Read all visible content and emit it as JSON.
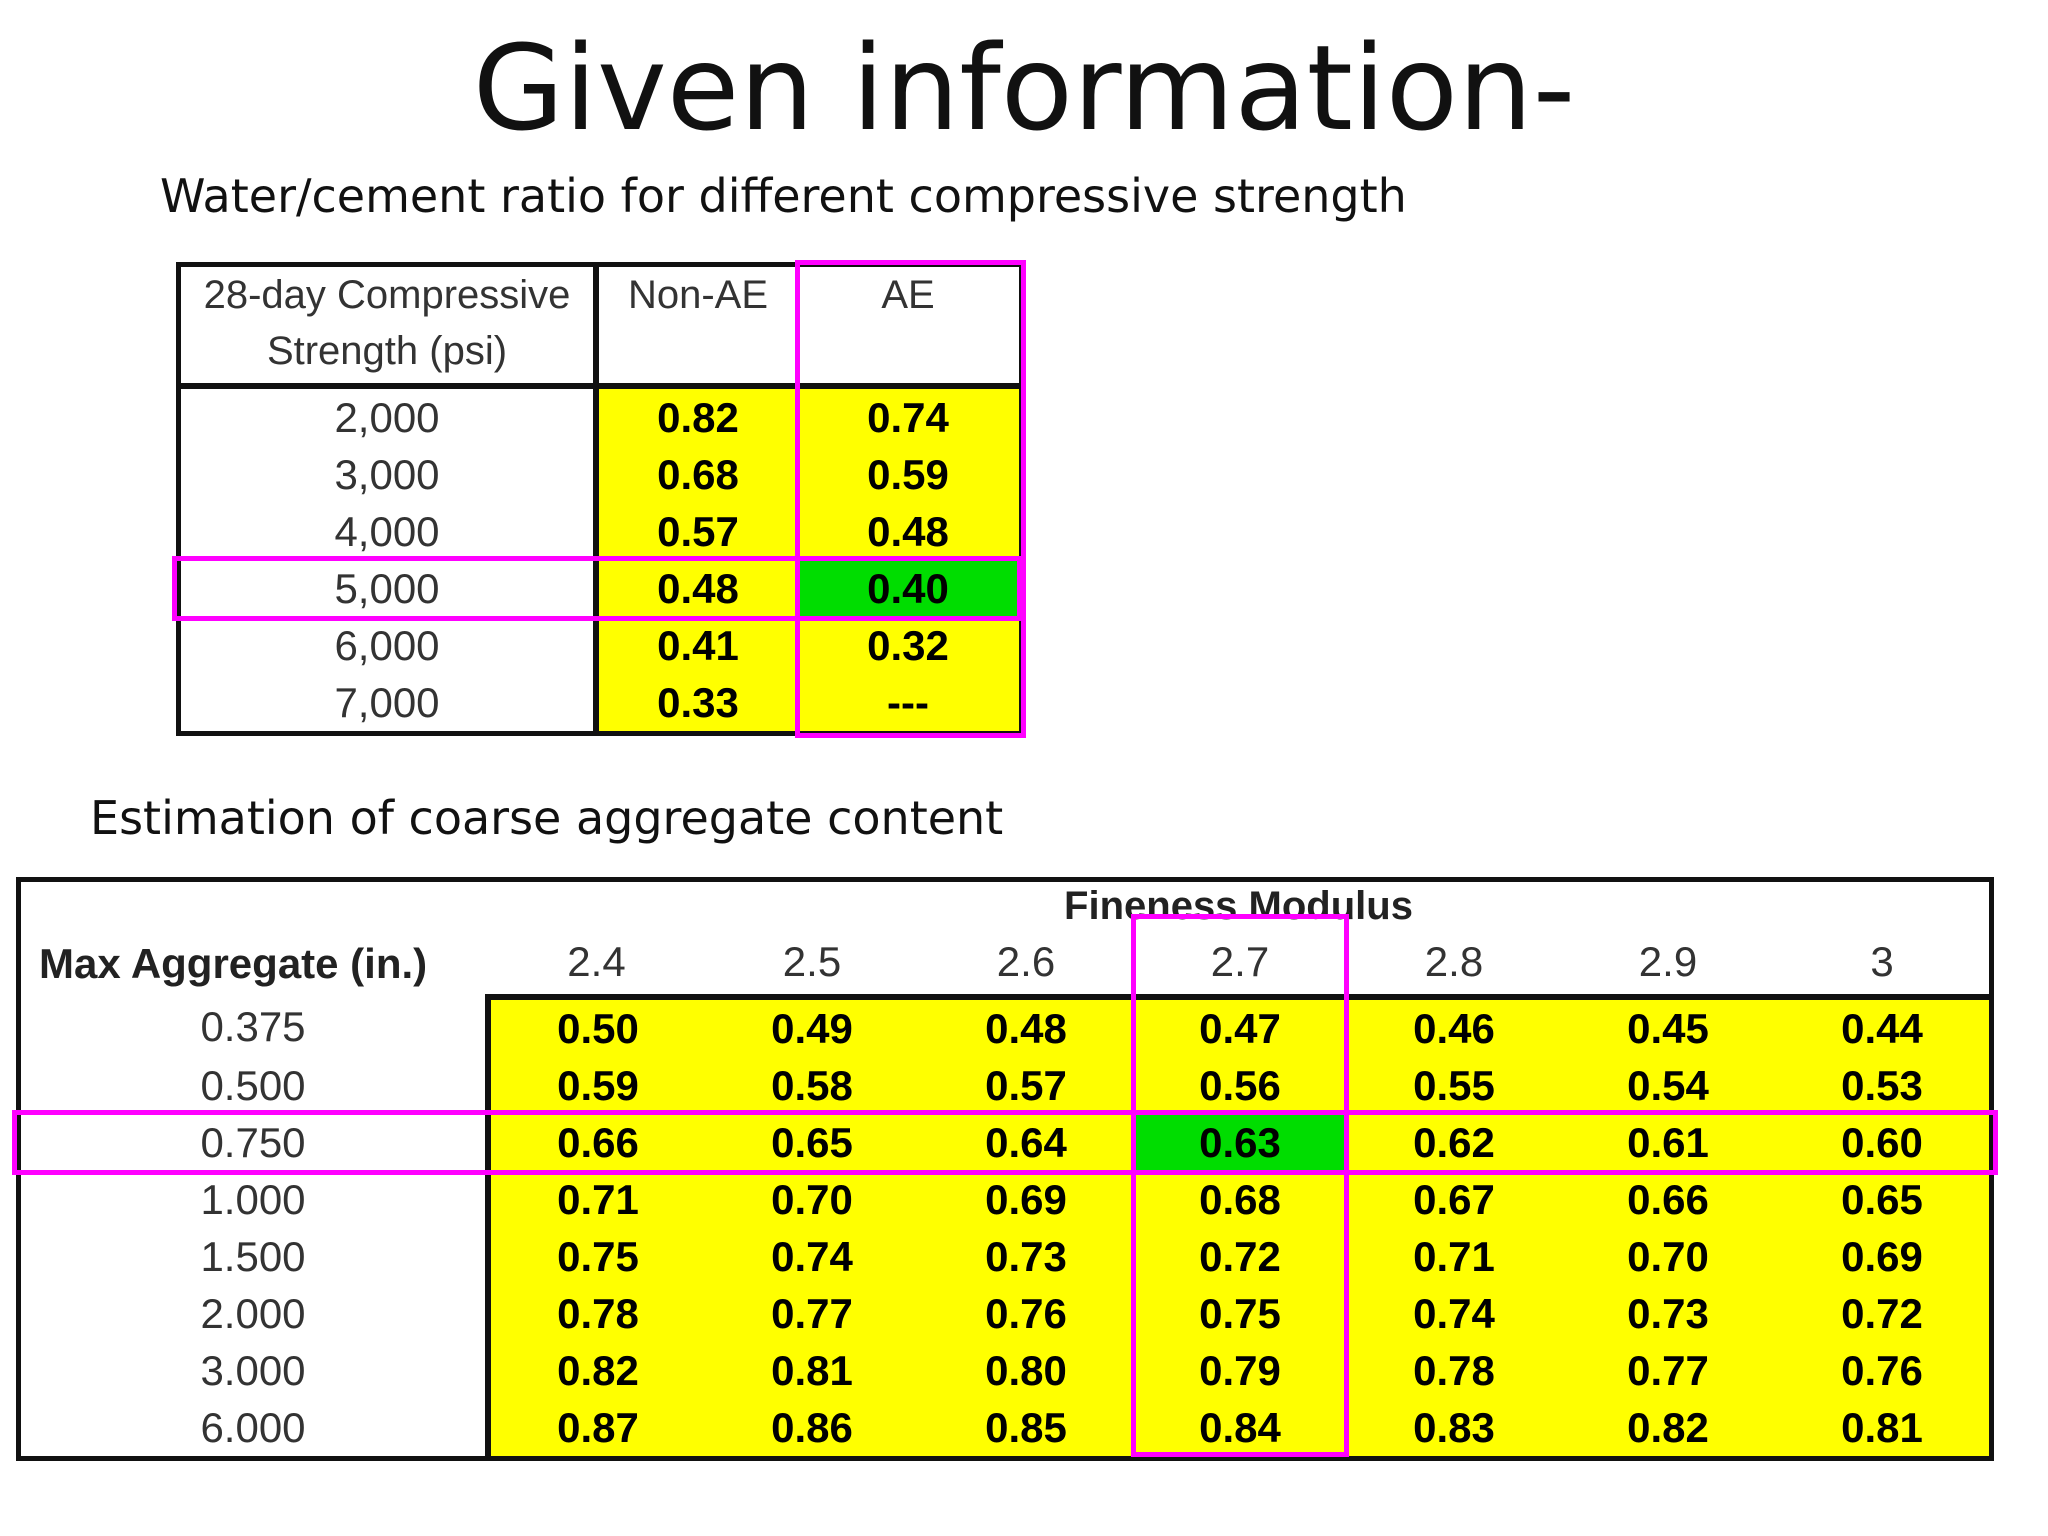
{
  "title": "Given information-",
  "wc_table": {
    "caption": "Water/cement ratio for different compressive strength",
    "headers": [
      "28-day Compressive Strength (psi)",
      "Non-AE",
      "AE"
    ],
    "rows": [
      {
        "strength": "2,000",
        "non_ae": "0.82",
        "ae": "0.74"
      },
      {
        "strength": "3,000",
        "non_ae": "0.68",
        "ae": "0.59"
      },
      {
        "strength": "4,000",
        "non_ae": "0.57",
        "ae": "0.48"
      },
      {
        "strength": "5,000",
        "non_ae": "0.48",
        "ae": "0.40"
      },
      {
        "strength": "6,000",
        "non_ae": "0.41",
        "ae": "0.32"
      },
      {
        "strength": "7,000",
        "non_ae": "0.33",
        "ae": "---"
      }
    ],
    "highlighted_row": "5,000",
    "highlighted_column": "AE",
    "highlighted_value": "0.40"
  },
  "ca_table": {
    "caption": "Estimation of coarse aggregate content",
    "group_header": "Fineness Modulus",
    "row_header": "Max Aggregate (in.)",
    "columns": [
      "2.4",
      "2.5",
      "2.6",
      "2.7",
      "2.8",
      "2.9",
      "3"
    ],
    "rows": [
      {
        "size": "0.375",
        "values": [
          "0.50",
          "0.49",
          "0.48",
          "0.47",
          "0.46",
          "0.45",
          "0.44"
        ]
      },
      {
        "size": "0.500",
        "values": [
          "0.59",
          "0.58",
          "0.57",
          "0.56",
          "0.55",
          "0.54",
          "0.53"
        ]
      },
      {
        "size": "0.750",
        "values": [
          "0.66",
          "0.65",
          "0.64",
          "0.63",
          "0.62",
          "0.61",
          "0.60"
        ]
      },
      {
        "size": "1.000",
        "values": [
          "0.71",
          "0.70",
          "0.69",
          "0.68",
          "0.67",
          "0.66",
          "0.65"
        ]
      },
      {
        "size": "1.500",
        "values": [
          "0.75",
          "0.74",
          "0.73",
          "0.72",
          "0.71",
          "0.70",
          "0.69"
        ]
      },
      {
        "size": "2.000",
        "values": [
          "0.78",
          "0.77",
          "0.76",
          "0.75",
          "0.74",
          "0.73",
          "0.72"
        ]
      },
      {
        "size": "3.000",
        "values": [
          "0.82",
          "0.81",
          "0.80",
          "0.79",
          "0.78",
          "0.77",
          "0.76"
        ]
      },
      {
        "size": "6.000",
        "values": [
          "0.87",
          "0.86",
          "0.85",
          "0.84",
          "0.83",
          "0.82",
          "0.81"
        ]
      }
    ],
    "highlighted_row": "0.750",
    "highlighted_column": "2.7",
    "highlighted_value": "0.63"
  },
  "colors": {
    "cell_fill": "#ffff00",
    "selected_cell": "#00dd00",
    "highlight_box": "#ff00ff"
  }
}
